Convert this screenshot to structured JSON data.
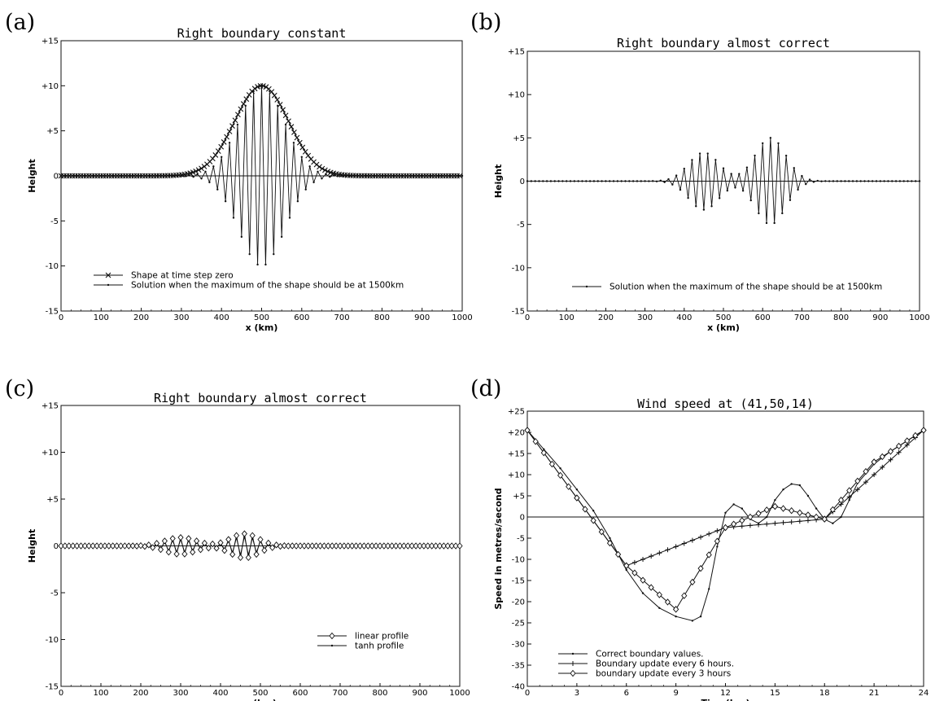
{
  "chart_data": [
    {
      "panel": "(a)",
      "type": "line",
      "title": "Right boundary constant",
      "xlabel": "x (km)",
      "ylabel": "Height",
      "xlim": [
        0,
        1000
      ],
      "ylim": [
        -15,
        15
      ],
      "xticks": [
        0,
        100,
        200,
        300,
        400,
        500,
        600,
        700,
        800,
        900,
        1000
      ],
      "yticks": [
        -15,
        -10,
        -5,
        0,
        5,
        10,
        15
      ],
      "ytick_labels": [
        "-15",
        "-10",
        "-5",
        "0",
        "+5",
        "+10",
        "+15"
      ],
      "legend_position": "bottom-left",
      "series": [
        {
          "name": "Shape at time step zero",
          "marker": "x",
          "description_values": {
            "form": "gaussian",
            "amplitude": 10,
            "center": 500,
            "width": 95
          },
          "x": [
            0,
            50,
            100,
            150,
            200,
            250,
            300,
            350,
            400,
            450,
            500,
            550,
            600,
            650,
            700,
            750,
            800,
            850,
            900,
            950,
            1000
          ],
          "y": [
            0,
            0,
            0,
            0,
            0.1,
            0.3,
            1.0,
            2.9,
            5.8,
            8.7,
            10.0,
            8.7,
            5.8,
            2.9,
            1.0,
            0.3,
            0.1,
            0,
            0,
            0,
            0
          ]
        },
        {
          "name": "Solution when the maximum of the shape should be at 1500km",
          "marker": "dot",
          "envelope_center": 500,
          "envelope_width": 80,
          "amplitude": 10,
          "period_km": 20,
          "x": [
            300,
            350,
            400,
            450,
            500,
            550,
            600,
            650,
            700
          ],
          "y_envelope": [
            0.4,
            2.0,
            5.5,
            9.0,
            10.0,
            9.0,
            5.5,
            2.0,
            0.4
          ]
        }
      ]
    },
    {
      "panel": "(b)",
      "type": "line",
      "title": "Right boundary almost correct",
      "xlabel": "x (km)",
      "ylabel": "Height",
      "xlim": [
        0,
        1000
      ],
      "ylim": [
        -15,
        15
      ],
      "xticks": [
        0,
        100,
        200,
        300,
        400,
        500,
        600,
        700,
        800,
        900,
        1000
      ],
      "yticks": [
        -15,
        -10,
        -5,
        0,
        5,
        10,
        15
      ],
      "ytick_labels": [
        "-15",
        "-10",
        "-5",
        "0",
        "+5",
        "+10",
        "+15"
      ],
      "legend_position": "bottom-left",
      "series": [
        {
          "name": "Solution when the maximum of the shape should be at 1500km",
          "marker": "dot",
          "period_km": 20,
          "packets": [
            {
              "center": 450,
              "width": 55,
              "amplitude": 3.3
            },
            {
              "center": 620,
              "width": 55,
              "amplitude": 5.0
            }
          ]
        }
      ]
    },
    {
      "panel": "(c)",
      "type": "line",
      "title": "Right boundary almost correct",
      "xlabel": "x (km)",
      "ylabel": "Height",
      "xlim": [
        0,
        1000
      ],
      "ylim": [
        -15,
        15
      ],
      "xticks": [
        0,
        100,
        200,
        300,
        400,
        500,
        600,
        700,
        800,
        900,
        1000
      ],
      "yticks": [
        -15,
        -10,
        -5,
        0,
        5,
        10,
        15
      ],
      "ytick_labels": [
        "-15",
        "-10",
        "-5",
        "0",
        "+5",
        "+10",
        "+15"
      ],
      "legend_position": "bottom-right",
      "series": [
        {
          "name": "linear profile",
          "marker": "diamond",
          "period_km": 20,
          "packets": [
            {
              "center": 300,
              "width": 55,
              "amplitude": 0.9
            },
            {
              "center": 460,
              "width": 50,
              "amplitude": 1.3
            }
          ]
        },
        {
          "name": "tanh profile",
          "marker": "dot",
          "period_km": 20,
          "packets": [
            {
              "center": 300,
              "width": 55,
              "amplitude": 0.7
            },
            {
              "center": 460,
              "width": 50,
              "amplitude": 1.0
            }
          ]
        }
      ]
    },
    {
      "panel": "(d)",
      "type": "line",
      "title": "Wind speed at (41,50,14)",
      "xlabel": "Time(hrs)",
      "ylabel": "Speed in metres/second",
      "xlim": [
        0,
        24
      ],
      "ylim": [
        -40,
        25
      ],
      "xticks": [
        0,
        3,
        6,
        9,
        12,
        15,
        18,
        21,
        24
      ],
      "yticks": [
        -40,
        -35,
        -30,
        -25,
        -20,
        -15,
        -10,
        -5,
        0,
        5,
        10,
        15,
        20,
        25
      ],
      "ytick_labels": [
        "-40",
        "-35",
        "-30",
        "-25",
        "-20",
        "-15",
        "-10",
        "-5",
        "0",
        "+5",
        "+10",
        "+15",
        "+20",
        "+25"
      ],
      "legend_position": "bottom-left",
      "series": [
        {
          "name": "Correct boundary values.",
          "marker": "dot",
          "x": [
            0,
            1,
            2,
            3,
            4,
            5,
            6,
            7,
            8,
            9,
            10,
            10.5,
            11,
            11.5,
            12,
            12.5,
            13,
            13.5,
            14,
            14.5,
            15,
            15.5,
            16,
            16.5,
            17,
            17.5,
            18,
            18.5,
            19,
            19.5,
            20,
            21,
            22,
            23,
            24
          ],
          "y": [
            20.5,
            16,
            11.5,
            6.5,
            1.5,
            -5,
            -12.5,
            -18,
            -21.5,
            -23.5,
            -24.5,
            -23.5,
            -17,
            -7,
            1,
            3,
            2,
            -0.5,
            -1.5,
            0,
            4,
            6.5,
            7.8,
            7.5,
            5,
            2,
            -0.5,
            -1.5,
            0,
            4,
            8,
            12.5,
            15.5,
            18,
            20.5
          ]
        },
        {
          "name": "Boundary update every 6 hours.",
          "marker": "plus",
          "x": [
            0,
            6,
            12,
            18,
            24
          ],
          "y": [
            20.5,
            -11.5,
            -2.5,
            -0.5,
            20.5
          ]
        },
        {
          "name": "boundary update every 3 hours",
          "marker": "diamond",
          "x": [
            0,
            3,
            6,
            9,
            12,
            15,
            18,
            21,
            24
          ],
          "y": [
            20.5,
            4.5,
            -11.5,
            -21.8,
            -2.5,
            2.5,
            -0.5,
            13,
            20.5
          ]
        }
      ]
    }
  ]
}
